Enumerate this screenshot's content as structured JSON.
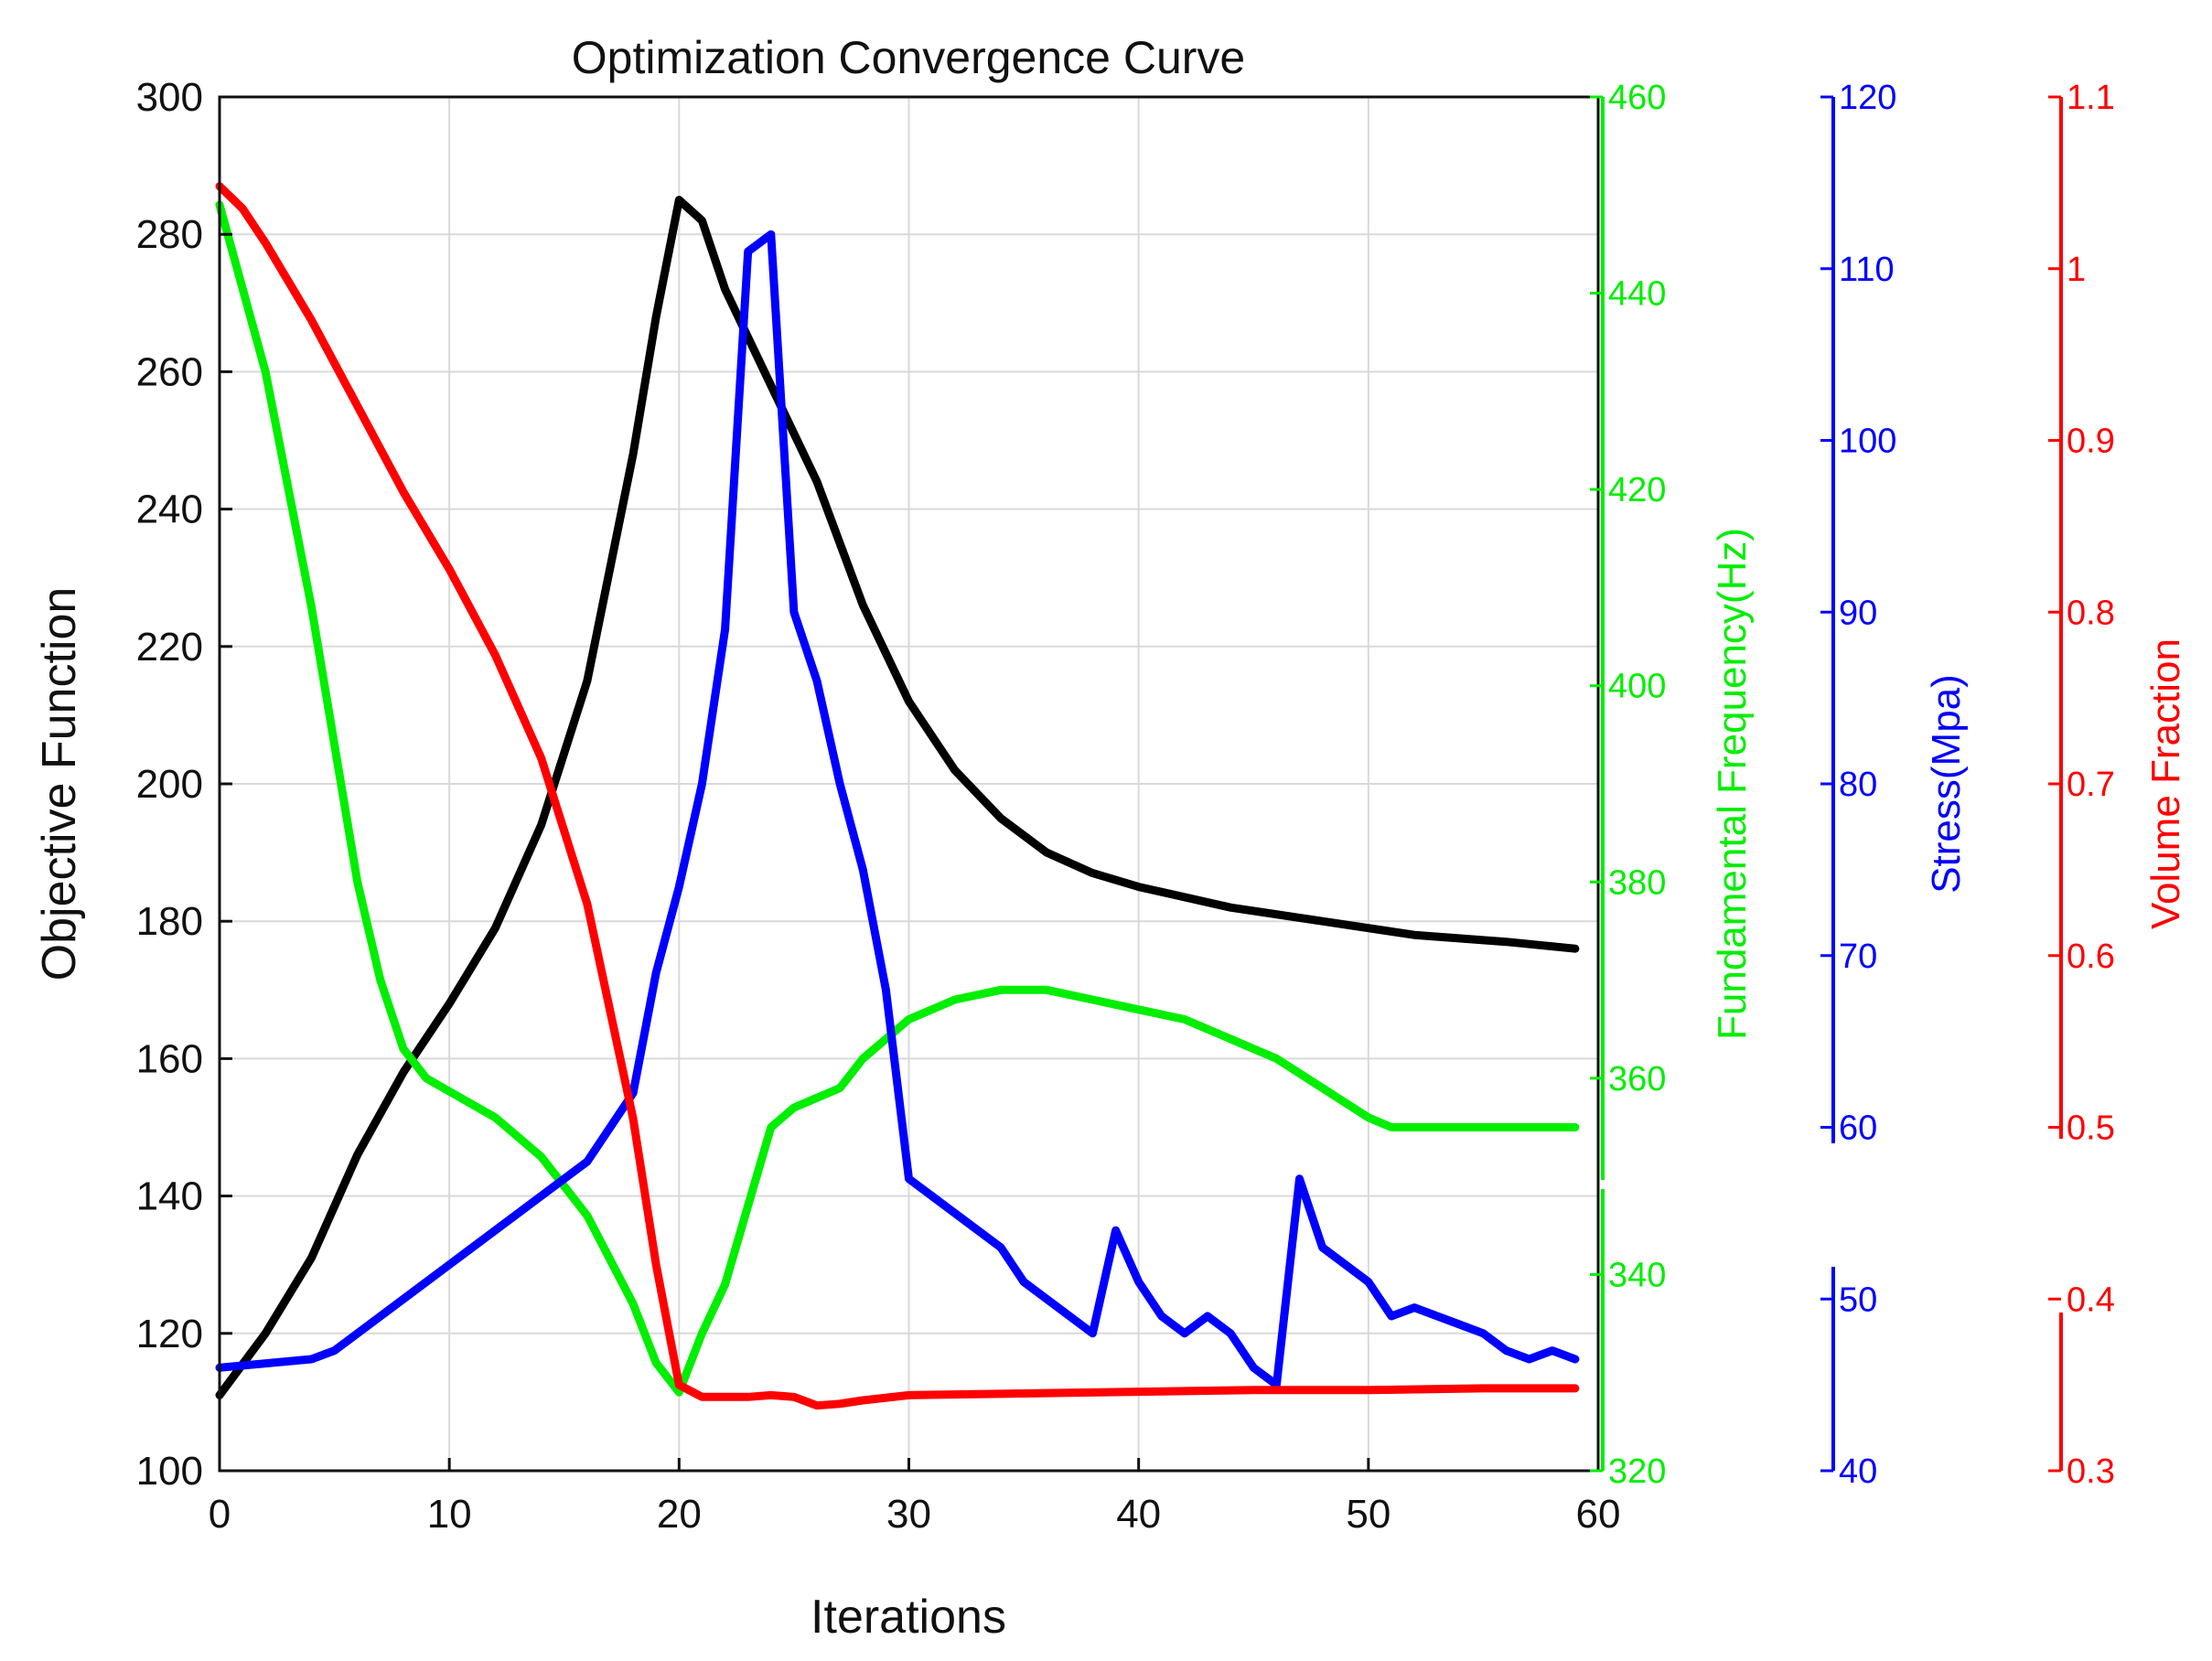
{
  "chart_data": {
    "type": "line",
    "title": "Optimization Convergence Curve",
    "xlabel": "Iterations",
    "xlim": [
      0,
      60
    ],
    "x_ticks": [
      0,
      10,
      20,
      30,
      40,
      50,
      60
    ],
    "grid": true,
    "axes": [
      {
        "id": "objective",
        "label": "Objective Function",
        "color": "#000000",
        "lim": [
          100,
          300
        ],
        "ticks": [
          100,
          120,
          140,
          160,
          180,
          200,
          220,
          240,
          260,
          280,
          300
        ],
        "tick_labels": [
          "100",
          "120",
          "140",
          "160",
          "180",
          "200",
          "220",
          "240",
          "260",
          "280",
          "300"
        ]
      },
      {
        "id": "frequency",
        "label": "Fundamental Frequency(Hz)",
        "color": "#00ee00",
        "lim": [
          320,
          460
        ],
        "ticks": [
          320,
          340,
          360,
          380,
          400,
          420,
          440,
          460
        ],
        "tick_labels": [
          "320",
          "340",
          "360",
          "380",
          "400",
          "420",
          "440",
          "460"
        ]
      },
      {
        "id": "stress",
        "label": "Stress(Mpa)",
        "color": "#0000ff",
        "lim": [
          40,
          120
        ],
        "ticks": [
          40,
          50,
          60,
          70,
          80,
          90,
          100,
          110,
          120
        ],
        "tick_labels": [
          "40",
          "50",
          "60",
          "70",
          "80",
          "90",
          "100",
          "110",
          "120"
        ]
      },
      {
        "id": "volume",
        "label": "Volume Fraction",
        "color": "#ff0000",
        "lim": [
          0.3,
          1.1
        ],
        "ticks": [
          0.3,
          0.4,
          0.5,
          0.6,
          0.7,
          0.8,
          0.9,
          1.0,
          1.1
        ],
        "tick_labels": [
          "0.3",
          "0.4",
          "0.5",
          "0.6",
          "0.7",
          "0.8",
          "0.9",
          "1",
          "1.1"
        ]
      }
    ],
    "series": [
      {
        "name": "Objective Function",
        "axis": "objective",
        "color": "#000000",
        "x": [
          0,
          2,
          4,
          6,
          8,
          10,
          12,
          14,
          16,
          18,
          19,
          20,
          21,
          22,
          24,
          26,
          28,
          30,
          32,
          34,
          36,
          38,
          40,
          44,
          48,
          52,
          56,
          59
        ],
        "y": [
          111,
          120,
          131,
          146,
          158,
          168,
          179,
          194,
          215,
          248,
          268,
          285,
          282,
          272,
          258,
          244,
          226,
          212,
          202,
          195,
          190,
          187,
          185,
          182,
          180,
          178,
          177,
          176
        ]
      },
      {
        "name": "Fundamental Frequency(Hz)",
        "axis": "frequency",
        "color": "#00ee00",
        "x": [
          0,
          2,
          4,
          6,
          7,
          8,
          9,
          12,
          14,
          16,
          18,
          19,
          20,
          21,
          22,
          23,
          24,
          25,
          26,
          27,
          28,
          30,
          32,
          34,
          36,
          38,
          40,
          42,
          44,
          46,
          48,
          50,
          51,
          54,
          57,
          59
        ],
        "y": [
          449,
          432,
          408,
          380,
          370,
          363,
          360,
          356,
          352,
          346,
          337,
          331,
          328,
          334,
          339,
          347,
          355,
          357,
          358,
          359,
          362,
          366,
          368,
          369,
          369,
          368,
          367,
          366,
          364,
          362,
          359,
          356,
          355,
          355,
          355,
          355
        ]
      },
      {
        "name": "Stress(Mpa)",
        "axis": "stress",
        "color": "#0000ff",
        "x": [
          0,
          4,
          5,
          10,
          16,
          17,
          18,
          19,
          20,
          21,
          22,
          23,
          24,
          25,
          26,
          27,
          28,
          29,
          30,
          34,
          35,
          38,
          39,
          40,
          41,
          42,
          43,
          44,
          45,
          46,
          47,
          48,
          50,
          51,
          52,
          53,
          54,
          55,
          56,
          57,
          58,
          59
        ],
        "y": [
          46,
          46.5,
          47,
          52,
          58,
          60,
          62,
          69,
          74,
          80,
          89,
          111,
          112,
          90,
          86,
          80,
          75,
          68,
          57,
          53,
          51,
          48,
          54,
          51,
          49,
          48,
          49,
          48,
          46,
          45,
          57,
          53,
          51,
          49,
          49.5,
          49,
          48.5,
          48,
          47,
          46.5,
          47,
          46.5
        ]
      },
      {
        "name": "Volume Fraction",
        "axis": "volume",
        "color": "#ff0000",
        "x": [
          0,
          1,
          2,
          4,
          6,
          8,
          10,
          12,
          14,
          16,
          18,
          19,
          20,
          21,
          22,
          23,
          24,
          25,
          26,
          27,
          28,
          30,
          35,
          40,
          45,
          50,
          55,
          59
        ],
        "y": [
          1.048,
          1.035,
          1.015,
          0.97,
          0.92,
          0.87,
          0.825,
          0.775,
          0.715,
          0.63,
          0.505,
          0.42,
          0.35,
          0.343,
          0.343,
          0.343,
          0.344,
          0.343,
          0.338,
          0.339,
          0.341,
          0.344,
          0.345,
          0.346,
          0.347,
          0.347,
          0.348,
          0.348
        ]
      }
    ]
  }
}
